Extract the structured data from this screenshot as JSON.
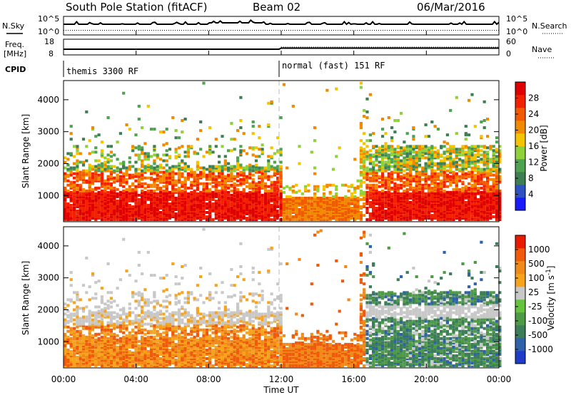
{
  "header": {
    "station": "South Pole Station (fitACF)",
    "beam": "Beam 02",
    "date": "06/Mar/2016"
  },
  "labels": {
    "nsky": "N.Sky",
    "freq": "Freq.",
    "freq_unit": "[MHz]",
    "cpid": "CPID",
    "nsearch": "N.Search",
    "nave": "Nave",
    "nsky_top": "10^5",
    "nsky_bot": "10^0",
    "nsearch_top": "10^5",
    "nsearch_bot": "10^0",
    "freq_top": "18",
    "freq_bot": "8",
    "nave_top": "60",
    "nave_bot": "0",
    "cpid_left": "themis 3300 RF",
    "cpid_right": "normal (fast) 151 RF",
    "xlabel": "Time UT"
  },
  "chart_data": [
    {
      "type": "heatmap",
      "title": "",
      "ylabel": "Slant Range [km]",
      "xlabel": "Time UT",
      "x_ticks": [
        "00:00",
        "04:00",
        "08:00",
        "12:00",
        "16:00",
        "20:00",
        "00:00"
      ],
      "xlim_hours": [
        0,
        24
      ],
      "y_ticks": [
        1000,
        2000,
        3000,
        4000
      ],
      "ylim": [
        180,
        4600
      ],
      "colorbar": {
        "label": "Power [dB]",
        "ticks": [
          "4",
          "8",
          "12",
          "16",
          "20",
          "24",
          "28"
        ],
        "range": [
          0,
          32
        ],
        "colors": [
          "#1a1aff",
          "#2f52c2",
          "#3d7e52",
          "#4fa24f",
          "#8fd13a",
          "#f5c400",
          "#f08a00",
          "#f25a00",
          "#f22200",
          "#e00000"
        ]
      }
    },
    {
      "type": "heatmap",
      "title": "",
      "ylabel": "Slant Range [km]",
      "xlabel": "Time UT",
      "x_ticks": [
        "00:00",
        "04:00",
        "08:00",
        "12:00",
        "16:00",
        "20:00",
        "00:00"
      ],
      "xlim_hours": [
        0,
        24
      ],
      "y_ticks": [
        1000,
        2000,
        3000,
        4000
      ],
      "ylim": [
        180,
        4600
      ],
      "colorbar": {
        "label": "Velocity [m s^-1]",
        "ticks": [
          "1000",
          "500",
          "100",
          "25",
          "-25",
          "-100",
          "-500",
          "-1000"
        ],
        "colors": [
          "#1e3cc8",
          "#2f62a8",
          "#3b7e58",
          "#4f9a46",
          "#66c33e",
          "#c8c8c8",
          "#f7a31b",
          "#f08a18",
          "#f05a0a",
          "#e81a00"
        ]
      }
    }
  ]
}
